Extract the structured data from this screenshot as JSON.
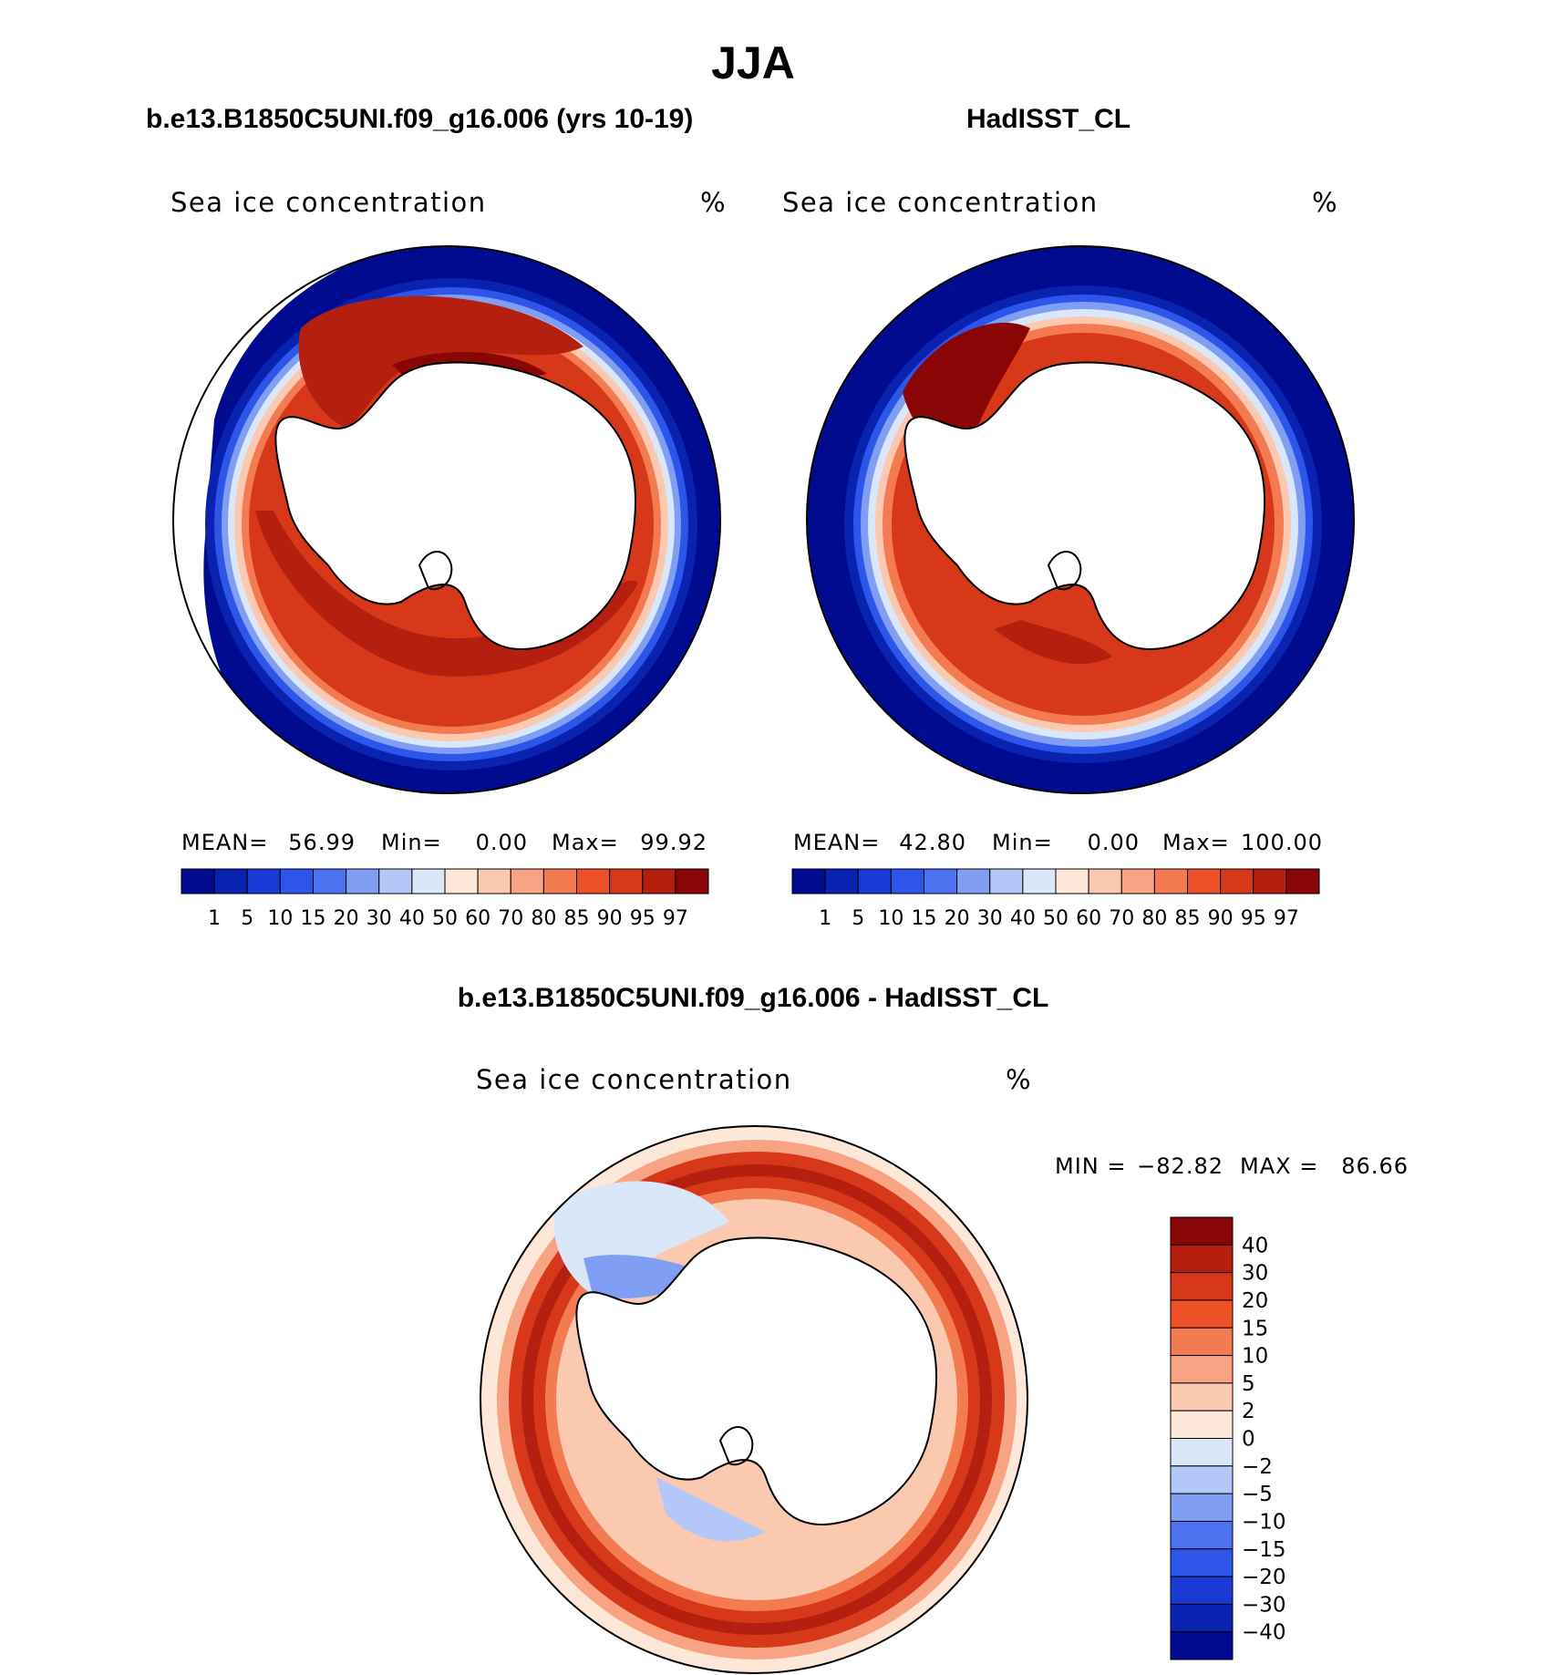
{
  "figure": {
    "title": "JJA",
    "panel_left_title": "b.e13.B1850C5UNI.f09_g16.006 (yrs 10-19)",
    "panel_right_title": "HadISST_CL",
    "panel_diff_title": "b.e13.B1850C5UNI.f09_g16.006 - HadISST_CL"
  },
  "chart_data": [
    {
      "type": "heatmap",
      "projection": "south polar stereographic",
      "variable": "Sea ice concentration",
      "units": "%",
      "source": "b.e13.B1850C5UNI.f09_g16.006 (yrs 10-19)",
      "stats": {
        "mean_label": "MEAN=",
        "mean": "56.99",
        "min_label": "Min=",
        "min": "0.00",
        "max_label": "Max=",
        "max": "99.92"
      },
      "levels": [
        "1",
        "5",
        "10",
        "15",
        "20",
        "30",
        "40",
        "50",
        "60",
        "70",
        "80",
        "85",
        "90",
        "95",
        "97"
      ],
      "colors": [
        "#000b8f",
        "#0a22b0",
        "#1a3ad6",
        "#2d55ea",
        "#4c72ef",
        "#7f9ef4",
        "#b3c8f8",
        "#dae7f8",
        "#fde7d8",
        "#fbc9b0",
        "#f8a383",
        "#f47a52",
        "#ee5028",
        "#d7381a",
        "#b41f0f",
        "#8a0505"
      ]
    },
    {
      "type": "heatmap",
      "projection": "south polar stereographic",
      "variable": "Sea ice concentration",
      "units": "%",
      "source": "HadISST_CL",
      "stats": {
        "mean_label": "MEAN=",
        "mean": "42.80",
        "min_label": "Min=",
        "min": "0.00",
        "max_label": "Max=",
        "max": "100.00"
      },
      "levels": [
        "1",
        "5",
        "10",
        "15",
        "20",
        "30",
        "40",
        "50",
        "60",
        "70",
        "80",
        "85",
        "90",
        "95",
        "97"
      ],
      "colors": [
        "#000b8f",
        "#0a22b0",
        "#1a3ad6",
        "#2d55ea",
        "#4c72ef",
        "#7f9ef4",
        "#b3c8f8",
        "#dae7f8",
        "#fde7d8",
        "#fbc9b0",
        "#f8a383",
        "#f47a52",
        "#ee5028",
        "#d7381a",
        "#b41f0f",
        "#8a0505"
      ]
    },
    {
      "type": "heatmap",
      "projection": "south polar stereographic",
      "variable": "Sea ice concentration",
      "units": "%",
      "source": "b.e13.B1850C5UNI.f09_g16.006 - HadISST_CL",
      "stats": {
        "min_label": "MIN =",
        "min": "−82.82",
        "max_label": "MAX =",
        "max": "86.66"
      },
      "levels": [
        "40",
        "30",
        "20",
        "15",
        "10",
        "5",
        "2",
        "0",
        "−2",
        "−5",
        "−10",
        "−15",
        "−20",
        "−30",
        "−40"
      ],
      "colors": [
        "#8a0505",
        "#b41f0f",
        "#d7381a",
        "#ee5028",
        "#f47a52",
        "#f8a383",
        "#fbc9b0",
        "#fde7d8",
        "#dae7f8",
        "#b3c8f8",
        "#7f9ef4",
        "#4c72ef",
        "#2d55ea",
        "#1a3ad6",
        "#0a22b0",
        "#000b8f"
      ]
    }
  ]
}
